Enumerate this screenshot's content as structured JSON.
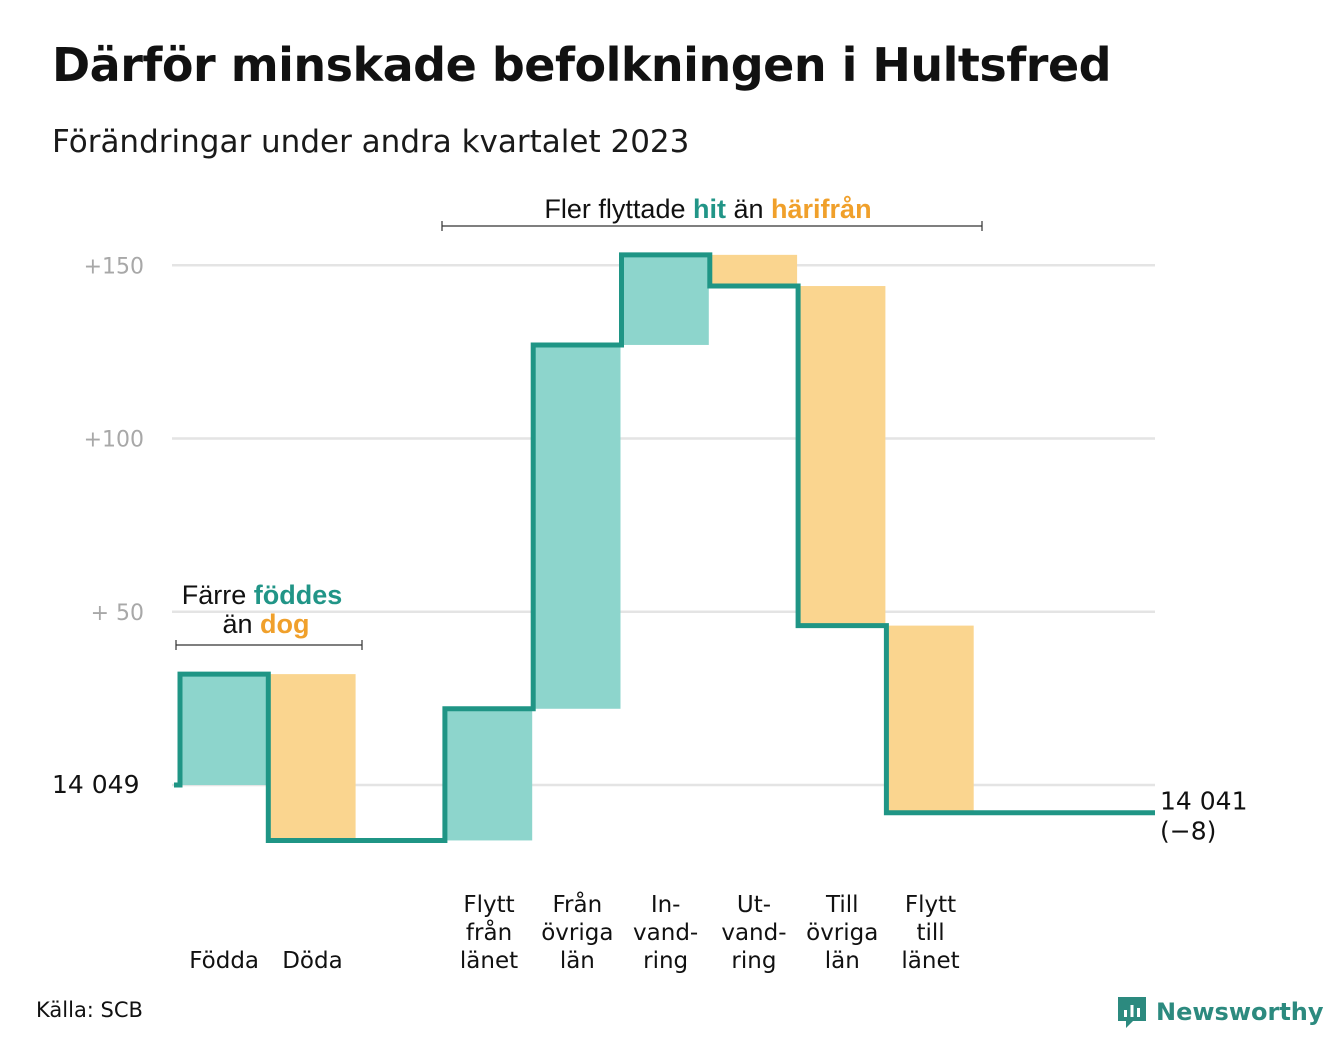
{
  "title": "Därför minskade befolkningen i Hultsfred",
  "subtitle": "Förändringar under andra kvartalet 2023",
  "source": "Källa: SCB",
  "brand": {
    "name": "Newsworthy",
    "icon": "newsworthy-logo-icon"
  },
  "colors": {
    "inflow": "#8dd5cc",
    "outflow": "#fad58f",
    "line": "#1f9585",
    "grid": "#e4e4e4",
    "tick": "#a8a8a8",
    "accent_teal": "#219587",
    "accent_orange": "#f0a02b"
  },
  "chart_data": {
    "type": "waterfall",
    "start_label": "14  049",
    "end_label": "14 041",
    "end_change": "(−8)",
    "start_value": 14049,
    "end_value": 14041,
    "yticks": [
      {
        "value": 150,
        "label": "+150"
      },
      {
        "value": 100,
        "label": "+100"
      },
      {
        "value": 50,
        "label": "+  50"
      }
    ],
    "ylim": [
      -22,
      160
    ],
    "steps": [
      {
        "lines": [
          "Födda"
        ],
        "change": 32,
        "kind": "inflow"
      },
      {
        "lines": [
          "Döda"
        ],
        "change": -48,
        "kind": "outflow"
      },
      {
        "lines": [],
        "change": 0,
        "kind": "gap"
      },
      {
        "lines": [
          "Flytt",
          "från",
          "länet"
        ],
        "change": 38,
        "kind": "inflow"
      },
      {
        "lines": [
          "Från",
          "övriga",
          "län"
        ],
        "change": 105,
        "kind": "inflow"
      },
      {
        "lines": [
          "In-",
          "vand-",
          "ring"
        ],
        "change": 26,
        "kind": "inflow"
      },
      {
        "lines": [
          "Ut-",
          "vand-",
          "ring"
        ],
        "change": -9,
        "kind": "outflow"
      },
      {
        "lines": [
          "Till",
          "övriga",
          "län"
        ],
        "change": -98,
        "kind": "outflow"
      },
      {
        "lines": [
          "Flytt",
          "till",
          "länet"
        ],
        "change": -54,
        "kind": "outflow"
      }
    ],
    "annotations": [
      {
        "parts": [
          {
            "text": "Färre ",
            "style": "plain"
          },
          {
            "text": "föddes",
            "style": "teal"
          }
        ],
        "parts2": [
          {
            "text": "än ",
            "style": "plain"
          },
          {
            "text": "dog",
            "style": "orange"
          }
        ]
      },
      {
        "parts": [
          {
            "text": "Fler flyttade ",
            "style": "plain"
          },
          {
            "text": "hit",
            "style": "teal"
          },
          {
            "text": " än ",
            "style": "plain"
          },
          {
            "text": "härifrån",
            "style": "orange"
          }
        ]
      }
    ]
  }
}
